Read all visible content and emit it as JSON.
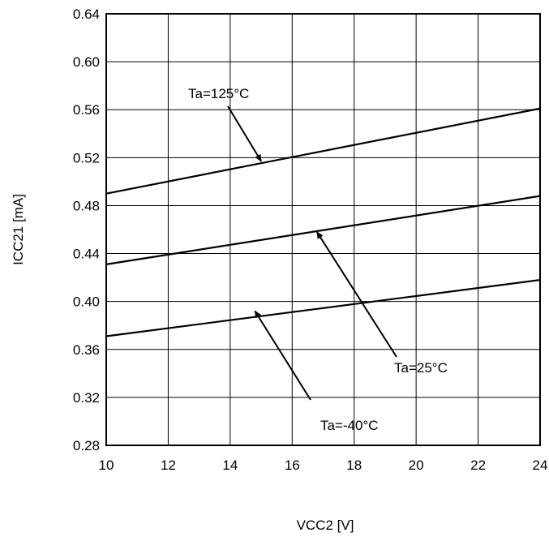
{
  "chart_data": {
    "type": "line",
    "title": "",
    "xlabel": "VCC2 [V]",
    "ylabel": "ICC21 [mA]",
    "xlim": [
      10,
      24
    ],
    "ylim": [
      0.28,
      0.64
    ],
    "xticks": [
      "10",
      "12",
      "14",
      "16",
      "18",
      "20",
      "22",
      "24"
    ],
    "yticks": [
      "0.28",
      "0.32",
      "0.36",
      "0.40",
      "0.44",
      "0.48",
      "0.52",
      "0.56",
      "0.60",
      "0.64"
    ],
    "grid": true,
    "series": [
      {
        "name": "Ta=125°C",
        "x": [
          10,
          24
        ],
        "y": [
          0.49,
          0.561
        ]
      },
      {
        "name": "Ta=25°C",
        "x": [
          10,
          24
        ],
        "y": [
          0.431,
          0.488
        ]
      },
      {
        "name": "Ta=-40°C",
        "x": [
          10,
          24
        ],
        "y": [
          0.371,
          0.418
        ]
      }
    ],
    "annotations": [
      {
        "text": "Ta=125°C",
        "target": [
          15.0,
          0.517
        ]
      },
      {
        "text": "Ta=25°C",
        "target": [
          16.8,
          0.458
        ]
      },
      {
        "text": "Ta=-40°C",
        "target": [
          14.8,
          0.392
        ]
      }
    ]
  },
  "colors": {
    "line": "#000000",
    "grid": "#000000",
    "background": "#ffffff"
  }
}
